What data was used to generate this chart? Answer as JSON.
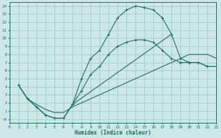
{
  "background_color": "#cce8e4",
  "grid_color": "#a0ccc8",
  "line_color": "#1a6b6b",
  "xlabel": "Humidex (Indice chaleur)",
  "xlim": [
    0,
    23
  ],
  "ylim": [
    -0.5,
    14.5
  ],
  "xticks": [
    0,
    1,
    2,
    3,
    4,
    5,
    6,
    7,
    8,
    9,
    10,
    11,
    12,
    13,
    14,
    15,
    16,
    17,
    18,
    19,
    20,
    21,
    22,
    23
  ],
  "yticks": [
    0,
    1,
    2,
    3,
    4,
    5,
    6,
    7,
    8,
    9,
    10,
    11,
    12,
    13,
    14
  ],
  "ytick_labels": [
    "-0",
    "1",
    "2",
    "3",
    "4",
    "5",
    "6",
    "7",
    "8",
    "9",
    "10",
    "11",
    "12",
    "13",
    "14"
  ],
  "curve_upper_x": [
    1,
    2,
    3,
    4,
    5,
    6,
    7,
    8,
    9,
    10,
    11,
    12,
    13,
    14,
    15,
    16,
    17,
    18
  ],
  "curve_upper_y": [
    4.2,
    2.5,
    1.5,
    0.5,
    0.1,
    0.1,
    1.8,
    5.0,
    7.5,
    8.5,
    10.5,
    12.5,
    13.5,
    14.0,
    13.8,
    13.5,
    12.5,
    10.5
  ],
  "curve_lower_x": [
    1,
    2,
    3,
    4,
    5,
    6,
    7,
    8,
    9,
    10,
    11,
    12,
    13,
    14,
    15,
    16,
    17,
    18,
    19,
    20,
    21,
    22,
    23
  ],
  "curve_lower_y": [
    4.2,
    2.5,
    1.8,
    1.2,
    0.8,
    0.8,
    1.5,
    2.0,
    2.5,
    3.0,
    3.5,
    4.0,
    4.5,
    5.0,
    5.5,
    6.0,
    6.5,
    7.0,
    7.5,
    8.0,
    8.0,
    8.0,
    7.5
  ],
  "curve_mid_x": [
    1,
    2,
    3,
    4,
    5,
    6,
    7,
    18,
    19,
    20,
    21,
    22,
    23
  ],
  "curve_mid_y": [
    4.2,
    2.5,
    1.5,
    0.5,
    0.1,
    0.1,
    1.8,
    10.5,
    7.5,
    7.0,
    7.0,
    6.5,
    6.5
  ],
  "curve_mid2_x": [
    7,
    8,
    9,
    10,
    11,
    12,
    13,
    14,
    15,
    16,
    17,
    18,
    19,
    20,
    21,
    22,
    23
  ],
  "curve_mid2_y": [
    1.8,
    3.5,
    5.5,
    6.5,
    8.0,
    9.0,
    9.5,
    9.8,
    9.8,
    9.5,
    8.5,
    7.5,
    7.0,
    7.0,
    7.0,
    6.5,
    6.5
  ]
}
